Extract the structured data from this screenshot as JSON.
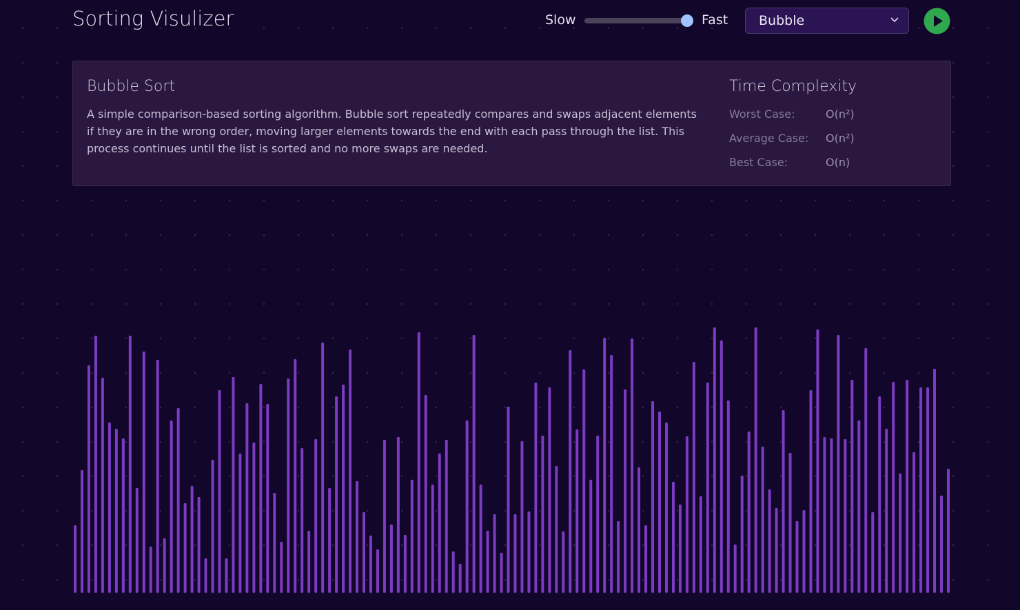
{
  "header": {
    "title": "Sorting Visulizer",
    "slow": "Slow",
    "fast": "Fast",
    "algorithm": "Bubble"
  },
  "info": {
    "name": "Bubble Sort",
    "description": "A simple comparison-based sorting algorithm. Bubble sort repeatedly compares and swaps adjacent elements if they are in the wrong order, moving larger elements towards the end with each pass through the list. This process continues until the list is sorted and no more swaps are needed.",
    "complexity_title": "Time Complexity",
    "complexity": [
      [
        "Worst Case:",
        "O(n²)"
      ],
      [
        "Average Case:",
        "O(n²)"
      ],
      [
        "Best Case:",
        "O(n)"
      ]
    ]
  },
  "chart_data": {
    "type": "bar",
    "color": "#7a3cc0",
    "values": [
      98,
      178,
      330,
      373,
      312,
      247,
      238,
      224,
      373,
      152,
      350,
      67,
      338,
      79,
      250,
      268,
      130,
      155,
      139,
      50,
      193,
      294,
      50,
      313,
      202,
      275,
      218,
      303,
      274,
      145,
      74,
      311,
      339,
      210,
      90,
      223,
      363,
      152,
      285,
      302,
      353,
      162,
      117,
      83,
      63,
      222,
      99,
      226,
      84,
      164,
      378,
      287,
      157,
      202,
      222,
      60,
      42,
      250,
      374,
      157,
      90,
      114,
      58,
      270,
      114,
      220,
      118,
      305,
      228,
      298,
      184,
      89,
      352,
      237,
      324,
      164,
      228,
      370,
      345,
      104,
      295,
      369,
      182,
      98,
      278,
      263,
      247,
      161,
      128,
      227,
      335,
      140,
      305,
      385,
      366,
      279,
      70,
      170,
      234,
      385,
      212,
      150,
      123,
      265,
      203,
      104,
      120,
      294,
      382,
      226,
      224,
      374,
      223,
      309,
      250,
      355,
      117,
      285,
      238,
      306,
      173,
      309,
      204,
      298,
      298,
      325,
      141,
      180
    ]
  }
}
